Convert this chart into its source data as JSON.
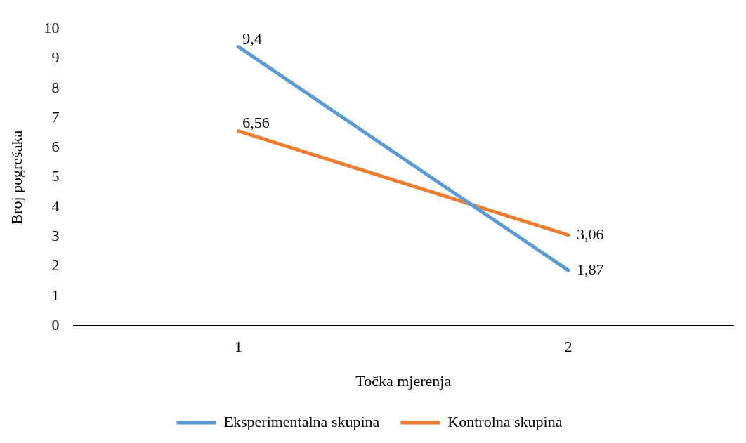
{
  "chart_data": {
    "type": "line",
    "xlabel": "Točka mjerenja",
    "ylabel": "Broj pogrešaka",
    "categories": [
      "1",
      "2"
    ],
    "series": [
      {
        "name": "Eksperimentalna skupina",
        "color": "#5b9bd5",
        "values": [
          9.4,
          1.87
        ],
        "value_labels": [
          "9,4",
          "1,87"
        ]
      },
      {
        "name": "Kontrolna skupina",
        "color": "#ed7d31",
        "values": [
          6.56,
          3.06
        ],
        "value_labels": [
          "6,56",
          "3,06"
        ]
      }
    ],
    "ylim": [
      0,
      10
    ],
    "yticks": [
      0,
      1,
      2,
      3,
      4,
      5,
      6,
      7,
      8,
      9,
      10
    ],
    "grid": false,
    "legend": "bottom",
    "marker": "none"
  }
}
